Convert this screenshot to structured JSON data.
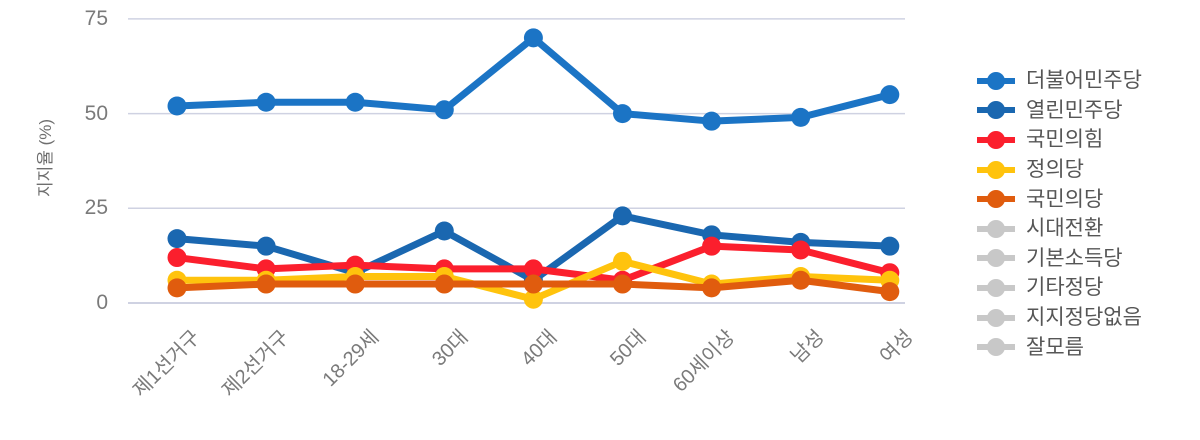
{
  "chart_data": {
    "type": "line",
    "title": "",
    "ylabel": "지지율 (%)",
    "xlabel": "",
    "yticks": [
      "0",
      "25",
      "50",
      "75"
    ],
    "ytick_values": [
      0,
      25,
      50,
      75
    ],
    "ylim": [
      0,
      75
    ],
    "grid": true,
    "legend_position": "right",
    "categories": [
      "제1선거구",
      "제2선거구",
      "18-29세",
      "30대",
      "40대",
      "50대",
      "60세이상",
      "남성",
      "여성"
    ],
    "series": [
      {
        "name": "더불어민주당",
        "color": "#1b74c5",
        "values": [
          52,
          53,
          53,
          51,
          70,
          50,
          48,
          49,
          55
        ]
      },
      {
        "name": "열린민주당",
        "color": "#1a67b0",
        "values": [
          17,
          15,
          8,
          19,
          6,
          23,
          18,
          16,
          15
        ]
      },
      {
        "name": "국민의힘",
        "color": "#fb1f2d",
        "values": [
          12,
          9,
          10,
          9,
          9,
          6,
          15,
          14,
          8
        ]
      },
      {
        "name": "정의당",
        "color": "#ffc30d",
        "values": [
          6,
          6,
          7,
          7,
          1,
          11,
          5,
          7,
          6
        ]
      },
      {
        "name": "국민의당",
        "color": "#e05c0e",
        "values": [
          4,
          5,
          5,
          5,
          5,
          5,
          4,
          6,
          3
        ]
      },
      {
        "name": "시대전환",
        "color": "#c8c8c8",
        "values": []
      },
      {
        "name": "기본소득당",
        "color": "#c8c8c8",
        "values": []
      },
      {
        "name": "기타정당",
        "color": "#c8c8c8",
        "values": []
      },
      {
        "name": "지지정당없음",
        "color": "#c8c8c8",
        "values": []
      },
      {
        "name": "잘모름",
        "color": "#c8c8c8",
        "values": []
      }
    ]
  },
  "style_colors": {
    "gridline": "#cfd2e2",
    "tick_text": "#7a7a7a",
    "legend_text": "#565656",
    "background": "#ffffff"
  }
}
